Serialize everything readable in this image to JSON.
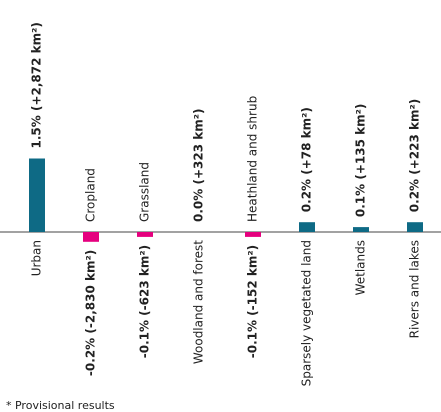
{
  "chart_data": {
    "type": "bar",
    "categories": [
      "Urban",
      "Cropland",
      "Grassland",
      "Woodland and forest",
      "Heathland and shrub",
      "Sparsely vegetated land",
      "Wetlands",
      "Rivers and lakes"
    ],
    "values": [
      1.5,
      -0.2,
      -0.1,
      0.0,
      -0.1,
      0.2,
      0.1,
      0.2
    ],
    "value_labels": [
      "1.5% (+2,872 km²)",
      "-0.2% (-2,830 km²)",
      "-0.1% (-623 km²)",
      "0.0% (+323 km²)",
      "-0.1% (-152 km²)",
      "0.2% (+78 km²)",
      "0.1% (+135 km²)",
      "0.2% (+223 km²)"
    ],
    "colors": [
      "#0e6a85",
      "#e5007e",
      "#e5007e",
      "#0e6a85",
      "#e5007e",
      "#0e6a85",
      "#0e6a85",
      "#0e6a85"
    ],
    "footnote": "* Provisional results"
  }
}
